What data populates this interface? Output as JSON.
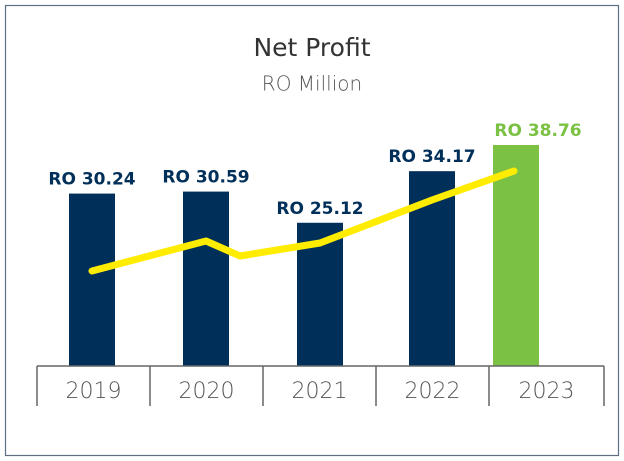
{
  "chart_data": {
    "type": "bar",
    "title": "Net Profit",
    "subtitle": "RO Million",
    "categories": [
      "2019",
      "2020",
      "2021",
      "2022",
      "2023"
    ],
    "values": [
      30.24,
      30.59,
      25.12,
      34.17,
      38.76
    ],
    "value_labels": [
      "RO 30.24",
      "RO 30.59",
      "RO 25.12",
      "RO 34.17",
      "RO 38.76"
    ],
    "colors": [
      "#00305a",
      "#00305a",
      "#00305a",
      "#00305a",
      "#7bc143"
    ]
  }
}
